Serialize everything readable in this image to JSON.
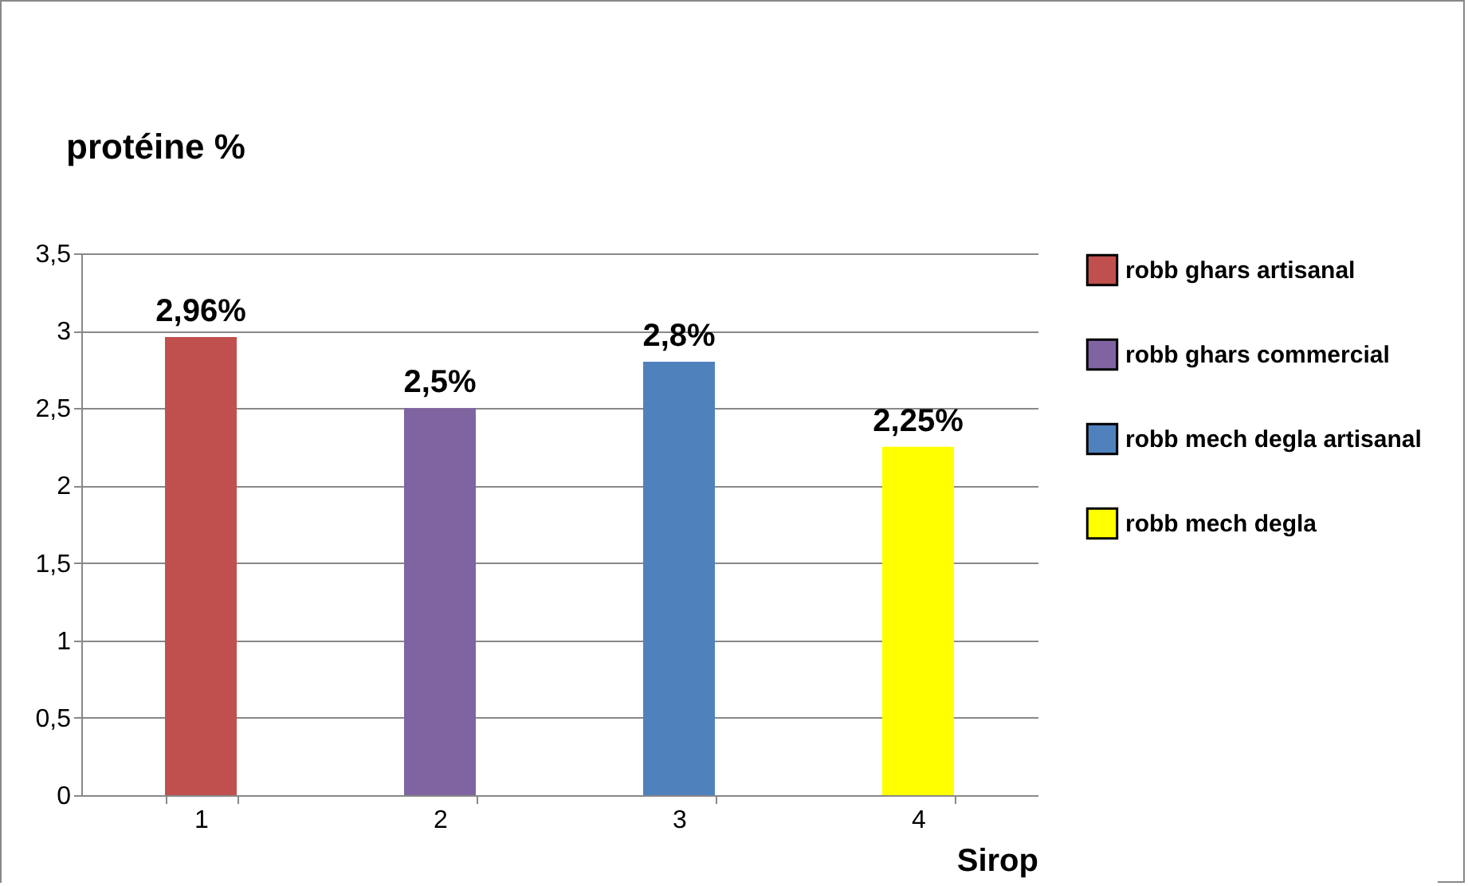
{
  "chart_data": {
    "type": "bar",
    "ylabel": "protéine %",
    "xlabel": "Sirop",
    "categories": [
      "1",
      "2",
      "3",
      "4"
    ],
    "series": [
      {
        "name": "robb ghars artisanal",
        "color": "#c0504d",
        "values": [
          2.96,
          null,
          null,
          null
        ],
        "value_labels": [
          "2,96%",
          null,
          null,
          null
        ]
      },
      {
        "name": "robb ghars commercial",
        "color": "#8064a2",
        "values": [
          null,
          2.5,
          null,
          null
        ],
        "value_labels": [
          null,
          "2,5%",
          null,
          null
        ]
      },
      {
        "name": "robb mech degla artisanal",
        "color": "#4f81bd",
        "values": [
          null,
          null,
          2.8,
          null
        ],
        "value_labels": [
          null,
          null,
          "2,8%",
          null
        ]
      },
      {
        "name": "robb mech degla",
        "color": "#ffff00",
        "values": [
          null,
          null,
          null,
          2.25
        ],
        "value_labels": [
          null,
          null,
          null,
          "2,25%"
        ]
      }
    ],
    "ylim": [
      0,
      3.5
    ],
    "yticks": [
      0,
      {
        "value": 0.5,
        "label": "0,5"
      },
      1,
      {
        "value": 1.5,
        "label": "1,5"
      },
      2,
      {
        "value": 2.5,
        "label": "2,5"
      },
      3,
      {
        "value": 3.5,
        "label": "3,5"
      }
    ],
    "grid": "y",
    "legend": "right"
  }
}
